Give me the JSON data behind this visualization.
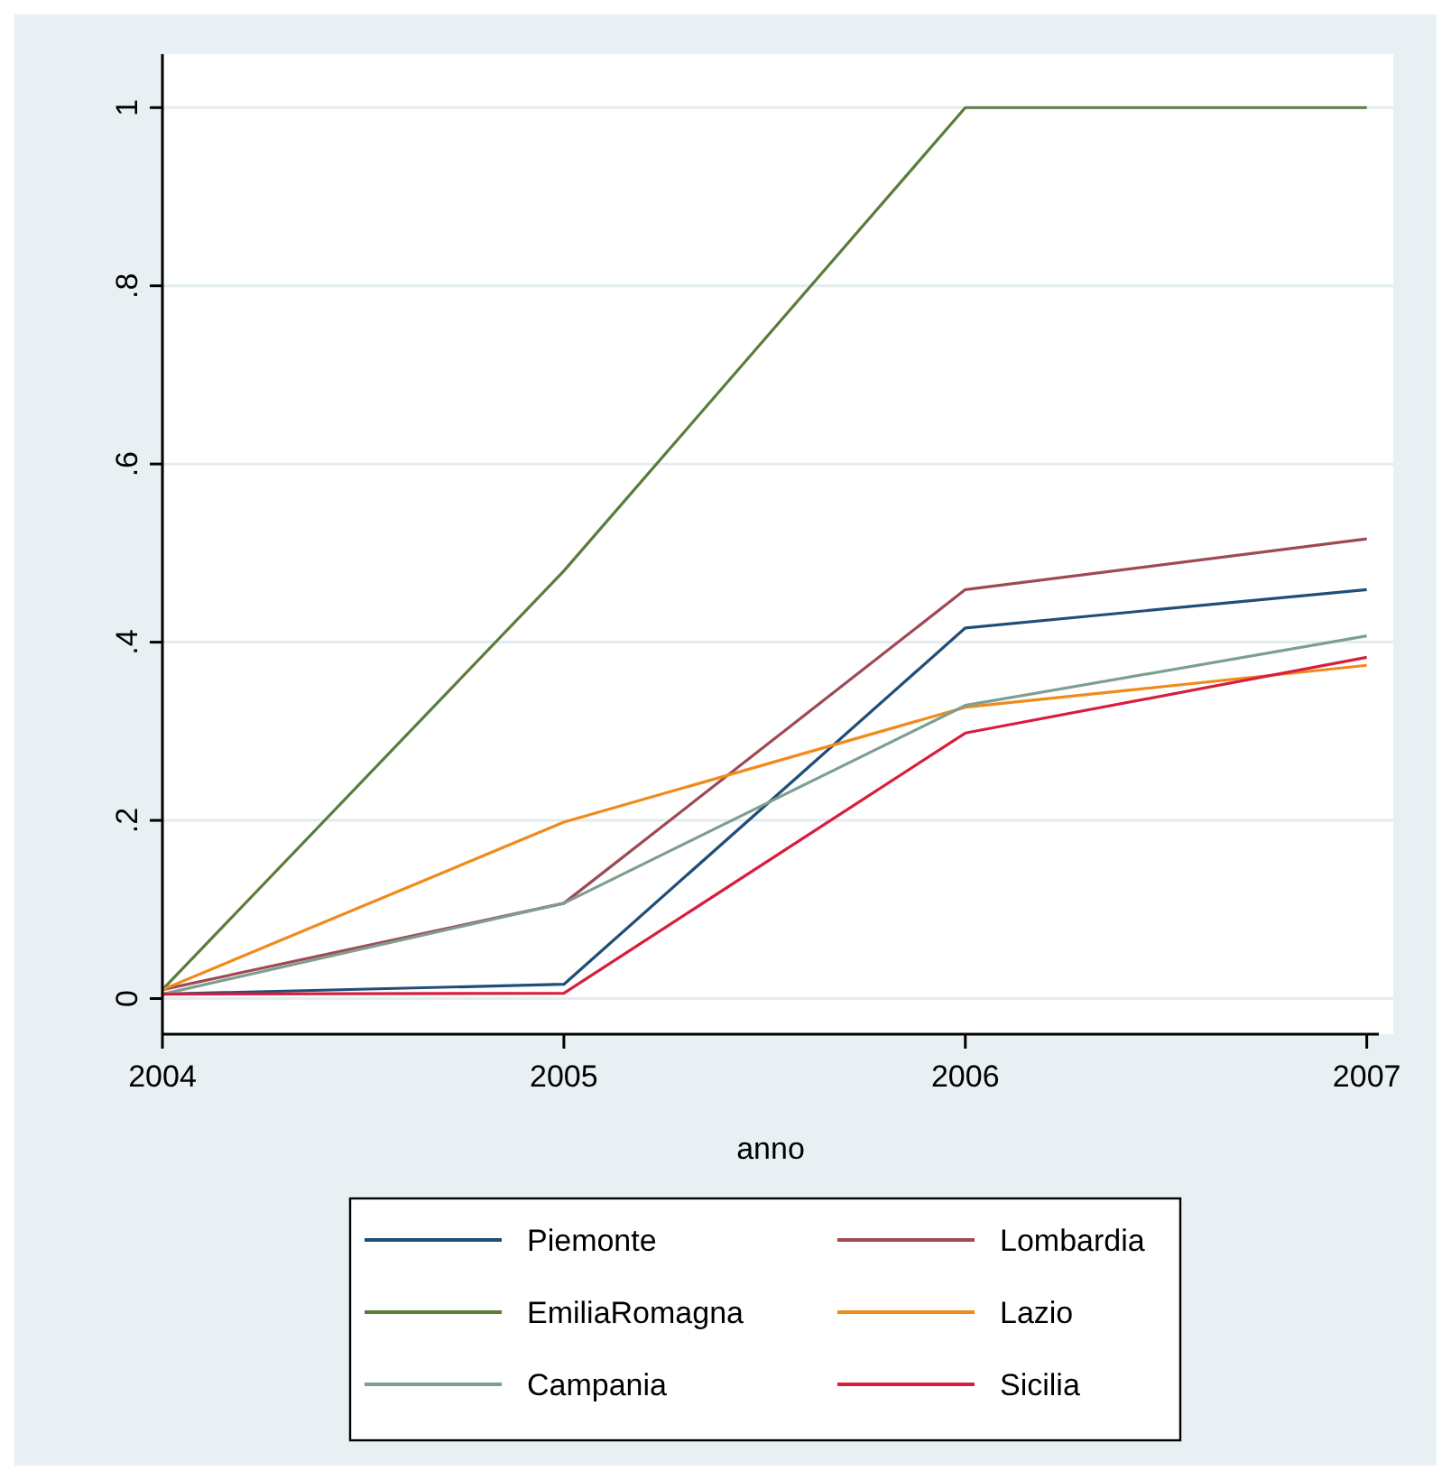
{
  "chart_data": {
    "type": "line",
    "xlabel": "anno",
    "x": [
      2004,
      2005,
      2006,
      2007
    ],
    "xlim": [
      2004,
      2007.03
    ],
    "xticks": [
      2004,
      2005,
      2006,
      2007
    ],
    "ylim": [
      -0.04,
      1.06
    ],
    "yticks": [
      0,
      {
        "value": 0.2,
        "label": ".2"
      },
      {
        "value": 0.4,
        "label": ".4"
      },
      {
        "value": 0.6,
        "label": ".6"
      },
      {
        "value": 0.8,
        "label": ".8"
      },
      1
    ],
    "grid": "y",
    "legend": "bottom",
    "line_style": "solid",
    "series": [
      {
        "name": "Piemonte",
        "color": "#1f4e79",
        "values": [
          0.005,
          0.016,
          0.416,
          0.459
        ]
      },
      {
        "name": "Lombardia",
        "color": "#9e4a55",
        "values": [
          0.01,
          0.107,
          0.459,
          0.516
        ]
      },
      {
        "name": "EmiliaRomagna",
        "color": "#5a7d3a",
        "values": [
          0.01,
          0.48,
          1,
          1
        ]
      },
      {
        "name": "Lazio",
        "color": "#f08a1c",
        "values": [
          0.01,
          0.198,
          0.327,
          0.374
        ]
      },
      {
        "name": "Campania",
        "color": "#7e9e92",
        "values": [
          0.005,
          0.107,
          0.329,
          0.407
        ]
      },
      {
        "name": "Sicilia",
        "color": "#d81e3e",
        "values": [
          0.005,
          0.006,
          0.298,
          0.383
        ]
      }
    ]
  }
}
